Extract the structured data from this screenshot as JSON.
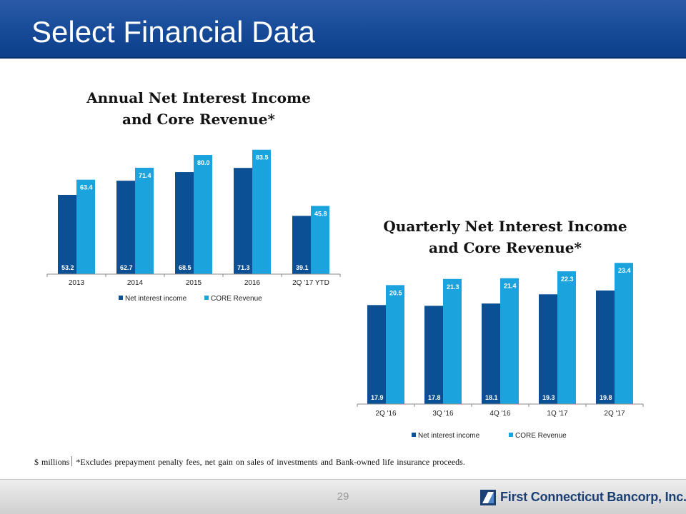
{
  "header": {
    "title": "Select Financial Data"
  },
  "footnote": {
    "units": "$ millions",
    "text": "*Excludes prepayment penalty fees, net gain on sales of investments and Bank-owned life insurance proceeds."
  },
  "footer": {
    "page_number": "29",
    "company": "First Connecticut Bancorp, Inc."
  },
  "colors": {
    "net_interest_income": "#0b4f94",
    "core_revenue": "#1ba3de",
    "header": "#164a97"
  },
  "chart_data": [
    {
      "type": "bar",
      "title": "Annual Net Interest Income and Core Revenue*",
      "title_lines": [
        "Annual Net Interest Income",
        "and Core Revenue*"
      ],
      "categories": [
        "2013",
        "2014",
        "2015",
        "2016",
        "2Q '17 YTD"
      ],
      "series": [
        {
          "name": "Net interest income",
          "values": [
            53.2,
            62.7,
            68.5,
            71.3,
            39.1
          ]
        },
        {
          "name": "CORE Revenue",
          "values": [
            63.4,
            71.4,
            80.0,
            83.5,
            45.8
          ]
        }
      ],
      "value_labels": [
        [
          "53.2",
          "62.7",
          "68.5",
          "71.3",
          "39.1"
        ],
        [
          "63.4",
          "71.4",
          "80.0",
          "83.5",
          "45.8"
        ]
      ],
      "ylim": [
        0,
        92
      ],
      "grid": false,
      "legend": "bottom"
    },
    {
      "type": "bar",
      "title": "Quarterly Net Interest Income and Core Revenue*",
      "title_lines": [
        "Quarterly Net Interest Income",
        "and Core Revenue*"
      ],
      "categories": [
        "2Q '16",
        "3Q '16",
        "4Q '16",
        "1Q '17",
        "2Q '17"
      ],
      "series": [
        {
          "name": "Net interest income",
          "values": [
            17.9,
            17.8,
            18.1,
            19.3,
            19.8
          ]
        },
        {
          "name": "CORE Revenue",
          "values": [
            20.5,
            21.3,
            21.4,
            22.3,
            23.4
          ]
        }
      ],
      "value_labels": [
        [
          "17.9",
          "17.8",
          "18.1",
          "19.3",
          "19.8"
        ],
        [
          "20.5",
          "21.3",
          "21.4",
          "22.3",
          "23.4"
        ]
      ],
      "ylim": [
        5,
        25
      ],
      "grid": false,
      "legend": "bottom"
    }
  ]
}
